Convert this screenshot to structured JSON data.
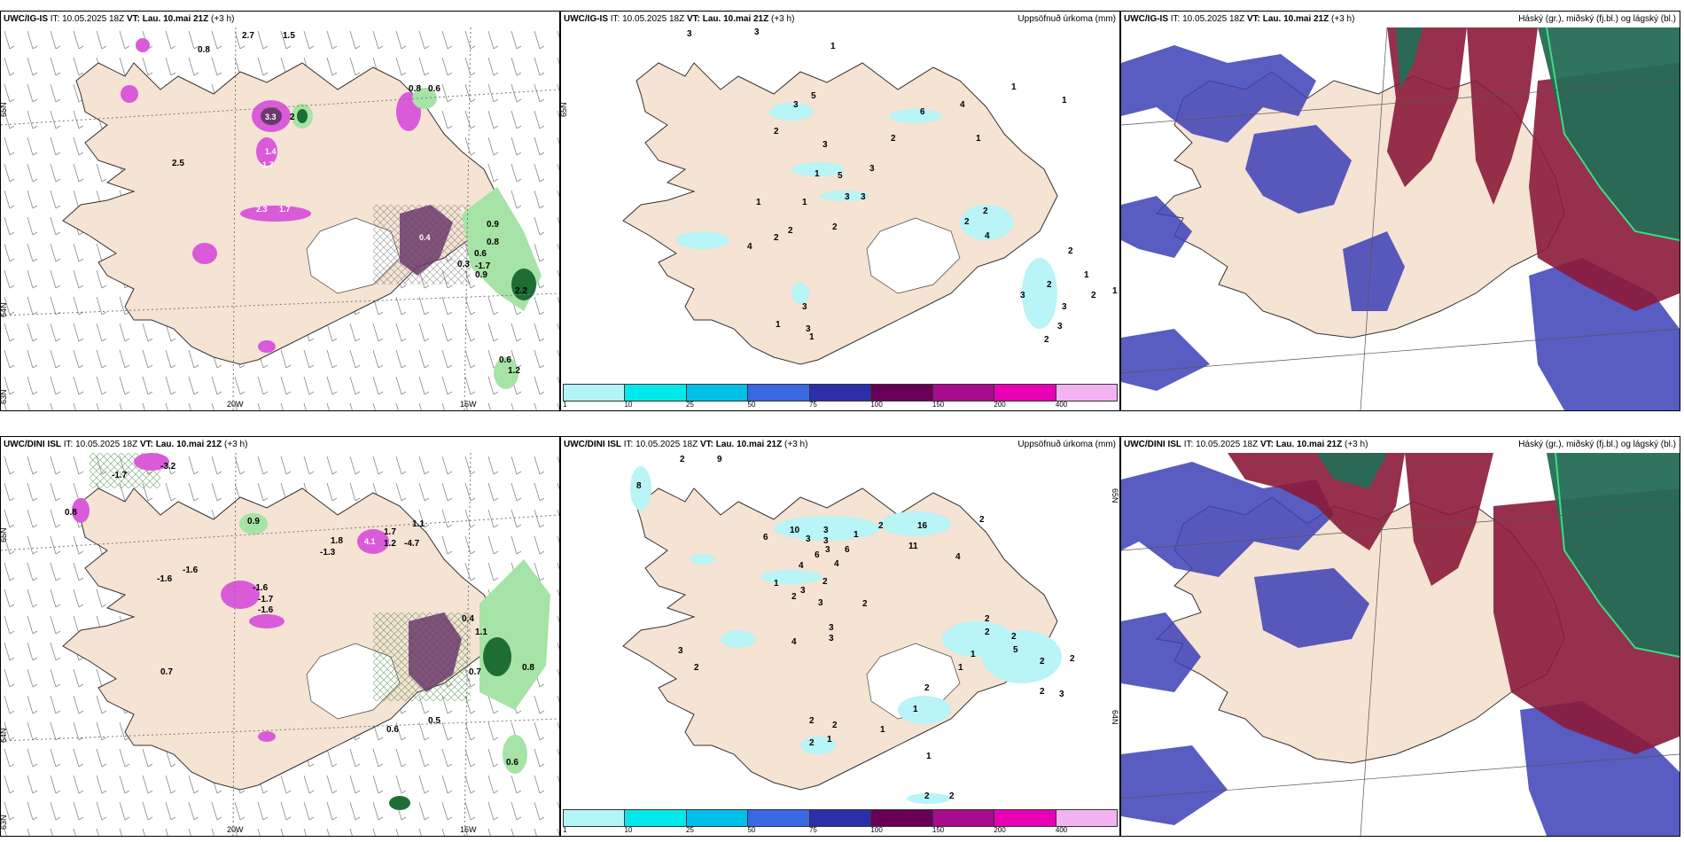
{
  "rows": [
    {
      "model": "UWC/IG-IS",
      "it": "IT: 10.05.2025 18Z",
      "vt_label": "VT:",
      "vt": "Lau. 10.mai 21Z",
      "lead": "(+3 h)",
      "precip_title": "Uppsöfnuð úrkoma (mm)",
      "cloud_title": "Háský (gr.), miðský (fj.bl.) og lágský (bl.)",
      "precip_values": [
        "3",
        "3",
        "1",
        "1",
        "1",
        "5",
        "3",
        "2",
        "6",
        "4",
        "2",
        "3",
        "1",
        "5",
        "3",
        "1",
        "1",
        "3",
        "3",
        "2",
        "1",
        "2",
        "2",
        "4",
        "4",
        "2",
        "2",
        "1",
        "3",
        "2",
        "2",
        "3",
        "2",
        "1",
        "3",
        "1",
        "3",
        "2",
        "3",
        "1"
      ],
      "temp_values": [
        "0.8",
        "2.7",
        "1.5",
        "3.3",
        "2",
        "0.8",
        "0.6",
        "2.5",
        "2.3",
        "1.7",
        "1.4",
        "-1.7",
        "2",
        "0.9",
        "0.4",
        "0.8",
        "0.6",
        "-1.7",
        "0.3",
        "0.9",
        "0.6",
        "1.2",
        "2.2"
      ]
    },
    {
      "model": "UWC/DINI ISL",
      "it": "IT: 10.05.2025 18Z",
      "vt_label": "VT:",
      "vt": "Lau. 10.mai 21Z",
      "lead": "(+3 h)",
      "precip_title": "Uppsöfnuð úrkoma (mm)",
      "cloud_title": "Háský (gr.), miðský (fj.bl.) og lágský (bl.)",
      "precip_values": [
        "2",
        "9",
        "8",
        "6",
        "10",
        "3",
        "3",
        "3",
        "1",
        "16",
        "2",
        "2",
        "11",
        "4",
        "6",
        "3",
        "6",
        "4",
        "4",
        "2",
        "1",
        "3",
        "2",
        "3",
        "2",
        "4",
        "3",
        "3",
        "2",
        "2",
        "1",
        "5",
        "2",
        "2",
        "2",
        "2",
        "3",
        "1",
        "2",
        "1",
        "2",
        "3",
        "1",
        "2",
        "2",
        "2",
        "1",
        "1",
        "2",
        "2"
      ],
      "temp_values": [
        "0.8",
        "-1.7",
        "-3.2",
        "-1.6",
        "0.9",
        "-1.7",
        "-1.6",
        "-1.3",
        "1.8",
        "4.1",
        "1.1",
        "1.7",
        "1.2",
        "-4.7",
        "-1.6",
        "-1.6",
        "0.7",
        "0.8",
        "0.6",
        "0.5",
        "0.6",
        "0.4",
        "0.7",
        "1.1"
      ]
    }
  ],
  "axes": {
    "lat_top": "65N",
    "lat_bottom": "64N",
    "lat_bottom2": "63N",
    "lon_left": "20W",
    "lon_right": "15W",
    "lat_top_right": "65N",
    "lat_bottom_right": "64N"
  },
  "legend": {
    "ticks": [
      "1",
      "10",
      "25",
      "50",
      "75",
      "100",
      "150",
      "200",
      "400"
    ],
    "colors": [
      "#b3f4f6",
      "#00e9ea",
      "#00bfe8",
      "#3a68e3",
      "#2c2fa8",
      "#6a0055",
      "#a80c8e",
      "#e800b5",
      "#f2b3f0"
    ]
  },
  "colors": {
    "land": "#f5e3d3",
    "precip_light": "#b9f4f6",
    "temp_pos": "#a6e3a6",
    "temp_pos_dark": "#1e6e33",
    "temp_neg": "#d95bd9",
    "temp_neg_dark": "#6b3a6b",
    "cloud_high": "#256b55",
    "cloud_mid": "#8b1a3a",
    "cloud_low": "#3c3fb6"
  }
}
